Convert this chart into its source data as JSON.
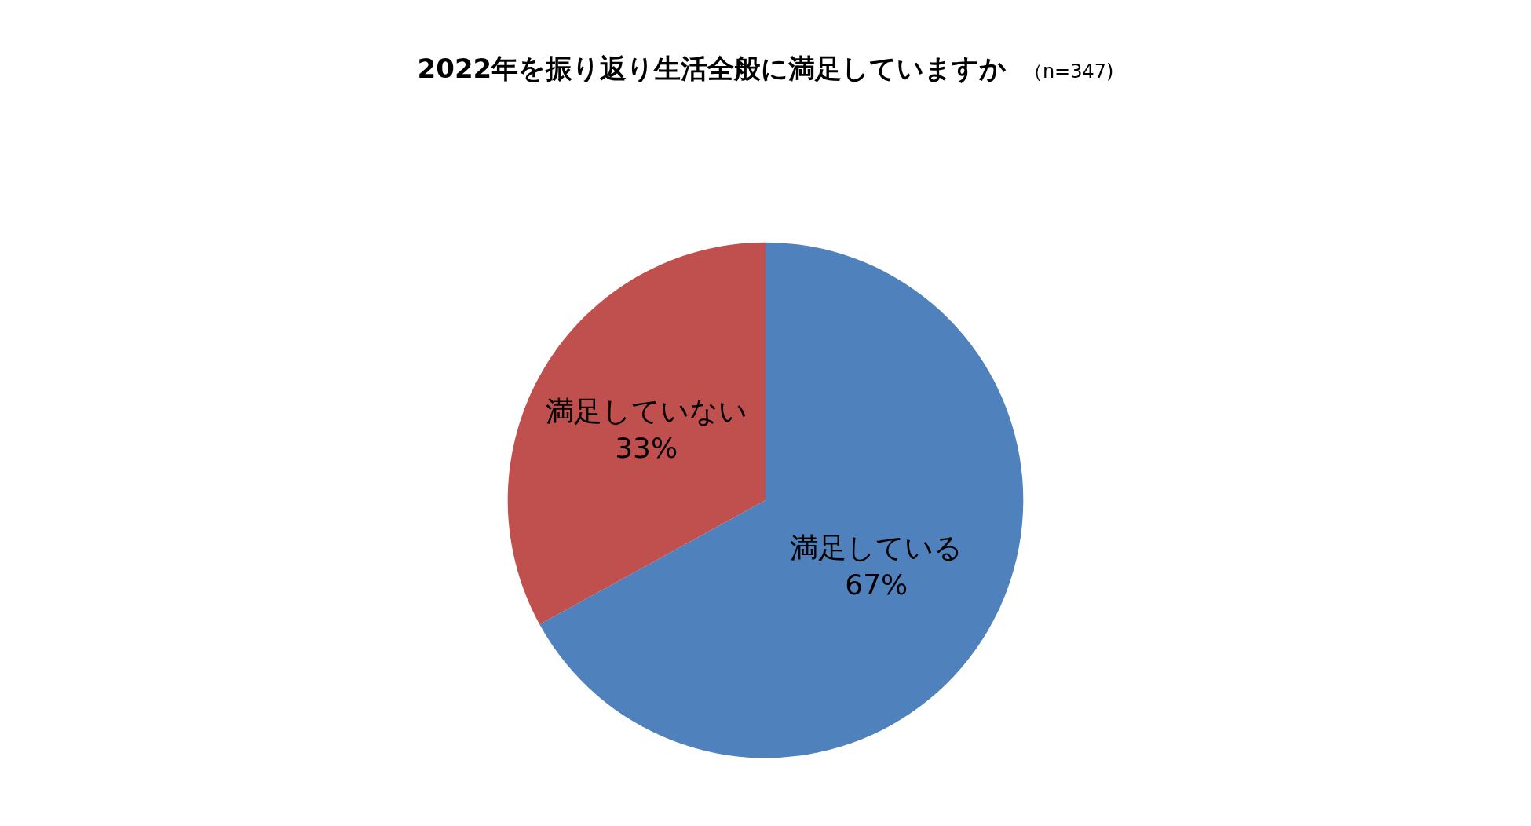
{
  "chart_data": {
    "type": "pie",
    "title": "2022年を振り返り生活全般に満足していますか",
    "subtitle": "（n=347)",
    "categories": [
      "満足している",
      "満足していない"
    ],
    "values": [
      67,
      33
    ],
    "value_labels": [
      "67%",
      "33%"
    ],
    "colors": [
      "#4f81bd",
      "#c0504d"
    ],
    "legend": false
  }
}
